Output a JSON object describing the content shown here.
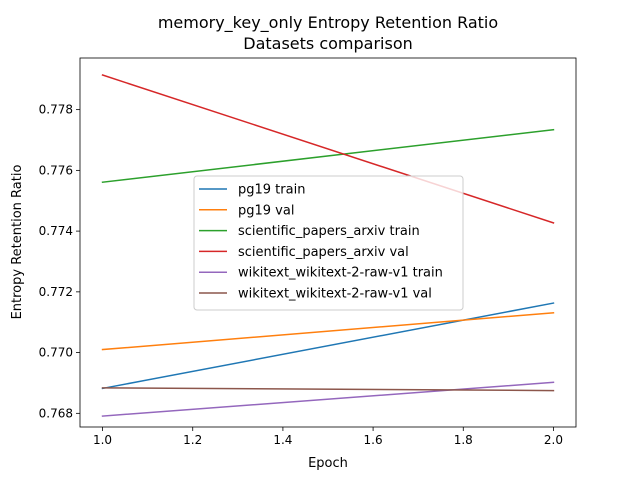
{
  "chart_data": {
    "type": "line",
    "title": "memory_key_only Entropy Retention Ratio",
    "subtitle": "Datasets comparison",
    "xlabel": "Epoch",
    "ylabel": "Entropy Retention Ratio",
    "xlim": [
      0.95,
      2.05
    ],
    "ylim": [
      0.76755,
      0.7797
    ],
    "xticks": [
      1.0,
      1.2,
      1.4,
      1.6,
      1.8,
      2.0
    ],
    "xtick_labels": [
      "1.0",
      "1.2",
      "1.4",
      "1.6",
      "1.8",
      "2.0"
    ],
    "yticks": [
      0.768,
      0.77,
      0.772,
      0.774,
      0.776,
      0.778
    ],
    "ytick_labels": [
      "0.768",
      "0.770",
      "0.772",
      "0.774",
      "0.776",
      "0.778"
    ],
    "grid": false,
    "legend_position": "center",
    "x": [
      1.0,
      2.0
    ],
    "series": [
      {
        "name": "pg19 train",
        "color": "#1f77b4",
        "values": [
          0.76882,
          0.77163
        ]
      },
      {
        "name": "pg19 val",
        "color": "#ff7f0e",
        "values": [
          0.7701,
          0.77131
        ]
      },
      {
        "name": "scientific_papers_arxiv train",
        "color": "#2ca02c",
        "values": [
          0.77561,
          0.77734
        ]
      },
      {
        "name": "scientific_papers_arxiv val",
        "color": "#d62728",
        "values": [
          0.77914,
          0.77427
        ]
      },
      {
        "name": "wikitext_wikitext-2-raw-v1 train",
        "color": "#9467bd",
        "values": [
          0.76791,
          0.76902
        ]
      },
      {
        "name": "wikitext_wikitext-2-raw-v1 val",
        "color": "#8c564b",
        "values": [
          0.76884,
          0.76875
        ]
      }
    ]
  }
}
